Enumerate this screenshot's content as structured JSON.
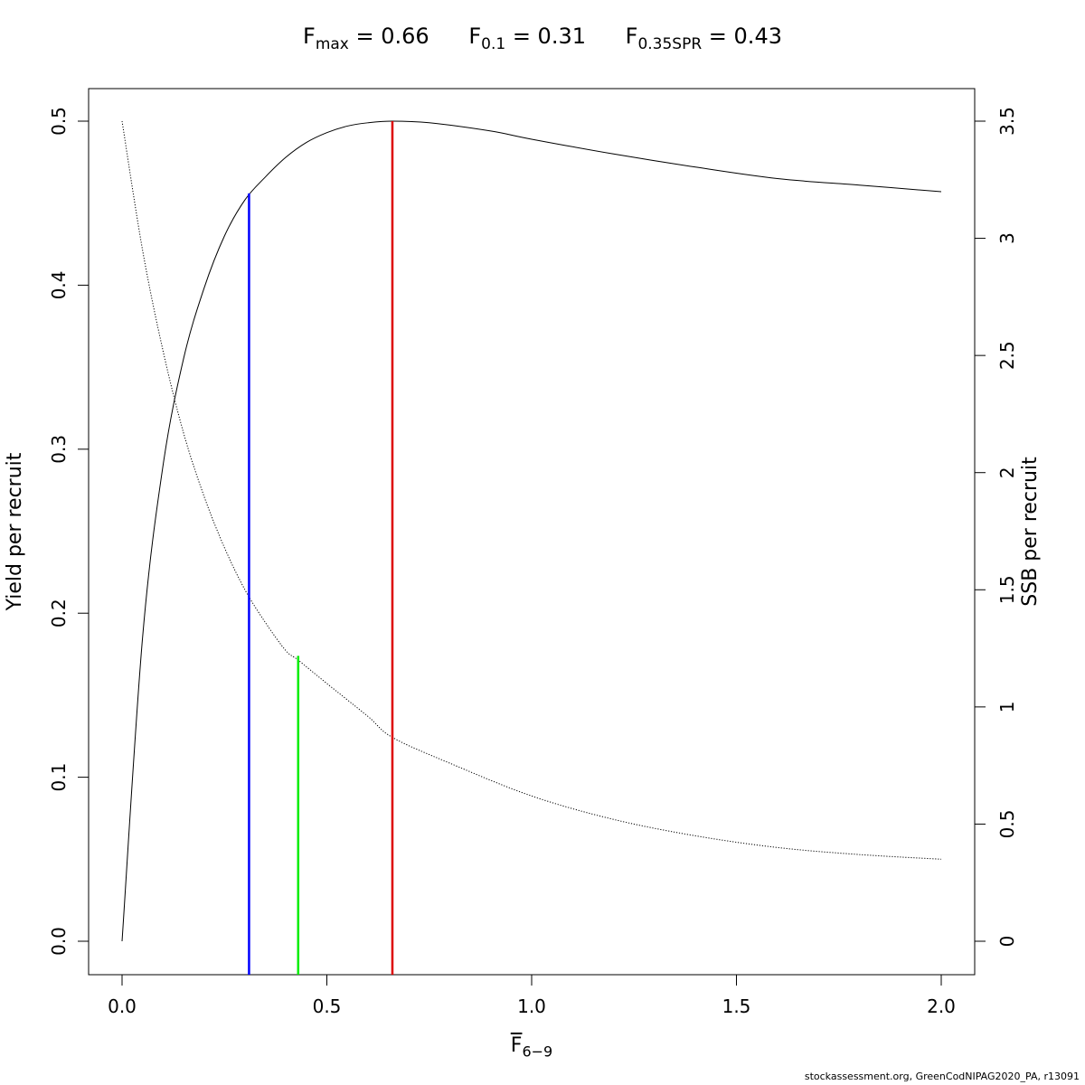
{
  "title": {
    "parts": [
      {
        "sym": "F",
        "sub": "max",
        "eq": " = 0.66"
      },
      {
        "sym": "F",
        "sub": "0.1",
        "eq": " = 0.31"
      },
      {
        "sym": "F",
        "sub": "0.35SPR",
        "eq": " = 0.43"
      }
    ]
  },
  "axes": {
    "xlabel": {
      "sym": "F",
      "sub": "6−9"
    },
    "ylabel_left": "Yield per recruit",
    "ylabel_right": "SSB per recruit"
  },
  "credit": "stockassessment.org, GreenCodNIPAG2020_PA, r13091",
  "chart_data": {
    "type": "line",
    "x_ticks": [
      "0.0",
      "0.5",
      "1.0",
      "1.5",
      "2.0"
    ],
    "y_left_ticks": [
      "0.0",
      "0.1",
      "0.2",
      "0.3",
      "0.4",
      "0.5"
    ],
    "y_right_ticks": [
      "0",
      "0.5",
      "1",
      "1.5",
      "2",
      "2.5",
      "3",
      "3.5"
    ],
    "xlim": [
      0,
      2
    ],
    "ylim_left": [
      0,
      0.5
    ],
    "ylim_right": [
      0,
      3.5
    ],
    "series": [
      {
        "axis": "left",
        "style": "solid",
        "color": "#000000",
        "x": [
          0,
          0.05,
          0.1,
          0.15,
          0.2,
          0.25,
          0.3,
          0.35,
          0.4,
          0.45,
          0.5,
          0.55,
          0.6,
          0.66,
          0.75,
          0.9,
          1.0,
          1.2,
          1.4,
          1.6,
          1.8,
          2.0
        ],
        "y": [
          0,
          0.185,
          0.29,
          0.355,
          0.398,
          0.43,
          0.452,
          0.466,
          0.478,
          0.487,
          0.493,
          0.497,
          0.499,
          0.5,
          0.499,
          0.494,
          0.489,
          0.48,
          0.472,
          0.465,
          0.461,
          0.457
        ]
      },
      {
        "axis": "right",
        "style": "dotted",
        "color": "#000000",
        "x": [
          0,
          0.05,
          0.1,
          0.15,
          0.2,
          0.25,
          0.3,
          0.35,
          0.4,
          0.43,
          0.5,
          0.6,
          0.66,
          0.8,
          1.0,
          1.2,
          1.4,
          1.6,
          1.8,
          2.0
        ],
        "y": [
          3.5,
          2.95,
          2.52,
          2.17,
          1.9,
          1.68,
          1.5,
          1.36,
          1.24,
          1.2,
          1.1,
          0.96,
          0.87,
          0.76,
          0.62,
          0.52,
          0.45,
          0.4,
          0.37,
          0.35
        ]
      }
    ],
    "reference_lines": [
      {
        "name": "F0.1",
        "x": 0.31,
        "y": 0.456,
        "color": "#0000ff"
      },
      {
        "name": "F0.35SPR",
        "x": 0.43,
        "y": 0.174,
        "color": "#00ee00"
      },
      {
        "name": "Fmax",
        "x": 0.66,
        "y": 0.5,
        "color": "#dd0000"
      }
    ],
    "grid": false
  }
}
